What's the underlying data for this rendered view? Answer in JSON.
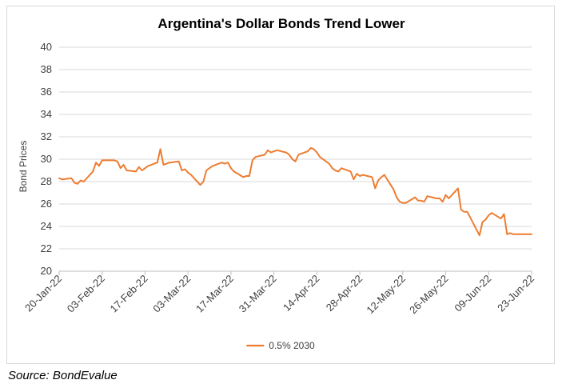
{
  "source": "Source: BondEvalue",
  "chart_data": {
    "type": "line",
    "title": "Argentina's Dollar Bonds Trend Lower",
    "xlabel": "",
    "ylabel": "Bond Prices",
    "ylim": [
      20,
      40
    ],
    "yticks": [
      20,
      22,
      24,
      26,
      28,
      30,
      32,
      34,
      36,
      38,
      40
    ],
    "x_tick_labels": [
      "20-Jan-22",
      "03-Feb-22",
      "17-Feb-22",
      "03-Mar-22",
      "17-Mar-22",
      "31-Mar-22",
      "14-Apr-22",
      "28-Apr-22",
      "12-May-22",
      "26-May-22",
      "09-Jun-22",
      "23-Jun-22"
    ],
    "x": [
      "2022-01-20",
      "2022-01-21",
      "2022-01-24",
      "2022-01-25",
      "2022-01-26",
      "2022-01-27",
      "2022-01-28",
      "2022-01-31",
      "2022-02-01",
      "2022-02-02",
      "2022-02-03",
      "2022-02-04",
      "2022-02-07",
      "2022-02-08",
      "2022-02-09",
      "2022-02-10",
      "2022-02-11",
      "2022-02-14",
      "2022-02-15",
      "2022-02-16",
      "2022-02-17",
      "2022-02-18",
      "2022-02-21",
      "2022-02-22",
      "2022-02-23",
      "2022-02-24",
      "2022-02-25",
      "2022-02-28",
      "2022-03-01",
      "2022-03-02",
      "2022-03-03",
      "2022-03-04",
      "2022-03-07",
      "2022-03-08",
      "2022-03-09",
      "2022-03-10",
      "2022-03-11",
      "2022-03-14",
      "2022-03-15",
      "2022-03-16",
      "2022-03-17",
      "2022-03-18",
      "2022-03-21",
      "2022-03-22",
      "2022-03-23",
      "2022-03-24",
      "2022-03-25",
      "2022-03-28",
      "2022-03-29",
      "2022-03-30",
      "2022-03-31",
      "2022-04-01",
      "2022-04-04",
      "2022-04-05",
      "2022-04-06",
      "2022-04-07",
      "2022-04-08",
      "2022-04-11",
      "2022-04-12",
      "2022-04-13",
      "2022-04-14",
      "2022-04-15",
      "2022-04-18",
      "2022-04-19",
      "2022-04-20",
      "2022-04-21",
      "2022-04-22",
      "2022-04-25",
      "2022-04-26",
      "2022-04-27",
      "2022-04-28",
      "2022-04-29",
      "2022-05-02",
      "2022-05-03",
      "2022-05-04",
      "2022-05-05",
      "2022-05-06",
      "2022-05-09",
      "2022-05-10",
      "2022-05-11",
      "2022-05-12",
      "2022-05-13",
      "2022-05-16",
      "2022-05-17",
      "2022-05-18",
      "2022-05-19",
      "2022-05-20",
      "2022-05-23",
      "2022-05-24",
      "2022-05-25",
      "2022-05-26",
      "2022-05-27",
      "2022-05-30",
      "2022-05-31",
      "2022-06-01",
      "2022-06-02",
      "2022-06-03",
      "2022-06-06",
      "2022-06-07",
      "2022-06-08",
      "2022-06-09",
      "2022-06-10",
      "2022-06-13",
      "2022-06-14",
      "2022-06-15",
      "2022-06-16",
      "2022-06-17",
      "2022-06-20",
      "2022-06-21",
      "2022-06-22",
      "2022-06-23"
    ],
    "series": [
      {
        "name": "0.5% 2030",
        "color": "#ED7D31",
        "values": [
          28.3,
          28.2,
          28.3,
          27.9,
          27.8,
          28.1,
          28.0,
          28.9,
          29.7,
          29.4,
          29.9,
          29.9,
          29.9,
          29.8,
          29.2,
          29.5,
          29.0,
          28.9,
          29.3,
          29.0,
          29.2,
          29.4,
          29.7,
          30.9,
          29.5,
          29.6,
          29.7,
          29.8,
          29.0,
          29.1,
          28.8,
          28.6,
          27.7,
          28.0,
          29.0,
          29.2,
          29.4,
          29.7,
          29.6,
          29.7,
          29.2,
          28.9,
          28.4,
          28.5,
          28.5,
          29.9,
          30.2,
          30.4,
          30.8,
          30.6,
          30.7,
          30.8,
          30.6,
          30.4,
          30.0,
          29.8,
          30.4,
          30.7,
          31.0,
          30.9,
          30.6,
          30.2,
          29.6,
          29.2,
          29.0,
          28.9,
          29.2,
          28.9,
          28.2,
          28.7,
          28.5,
          28.6,
          28.4,
          27.4,
          28.1,
          28.4,
          28.6,
          27.3,
          26.6,
          26.2,
          26.1,
          26.1,
          26.6,
          26.3,
          26.3,
          26.2,
          26.7,
          26.5,
          26.5,
          26.2,
          26.8,
          26.5,
          27.4,
          25.5,
          25.3,
          25.3,
          24.8,
          23.2,
          24.4,
          24.6,
          25.0,
          25.2,
          24.7,
          25.1,
          23.3,
          23.4,
          23.3,
          23.3,
          23.3,
          23.3,
          23.3
        ],
        "values_note": ""
      }
    ]
  }
}
